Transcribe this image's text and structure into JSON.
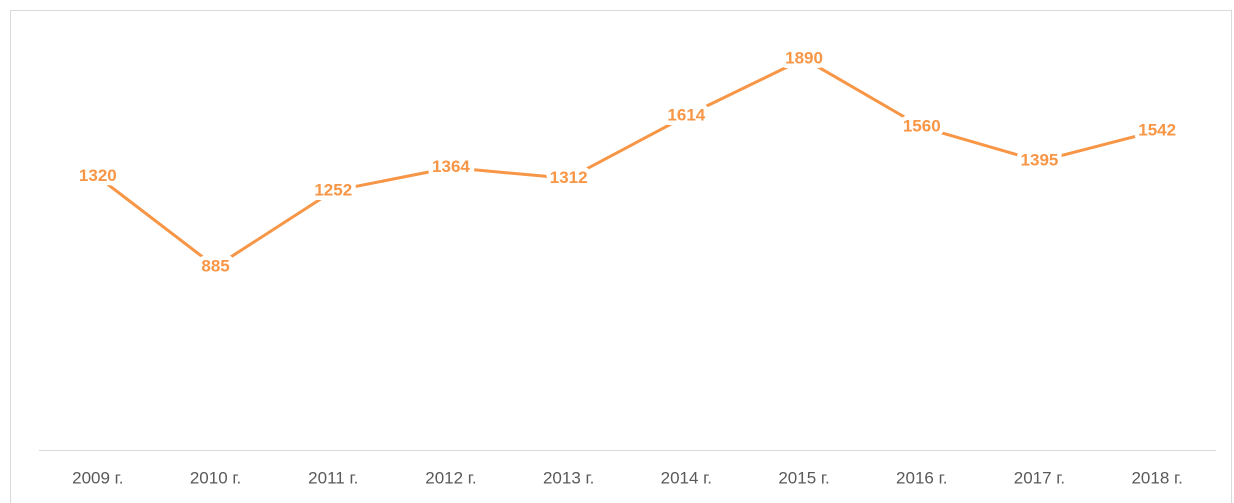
{
  "chart_data": {
    "type": "line",
    "categories": [
      "2009 г.",
      "2010 г.",
      "2011 г.",
      "2012 г.",
      "2013 г.",
      "2014 г.",
      "2015 г.",
      "2016 г.",
      "2017 г.",
      "2018 г."
    ],
    "values": [
      1320,
      885,
      1252,
      1364,
      1312,
      1614,
      1890,
      1560,
      1395,
      1542
    ],
    "color": "#f79646",
    "ylim": [
      0,
      2000
    ]
  }
}
